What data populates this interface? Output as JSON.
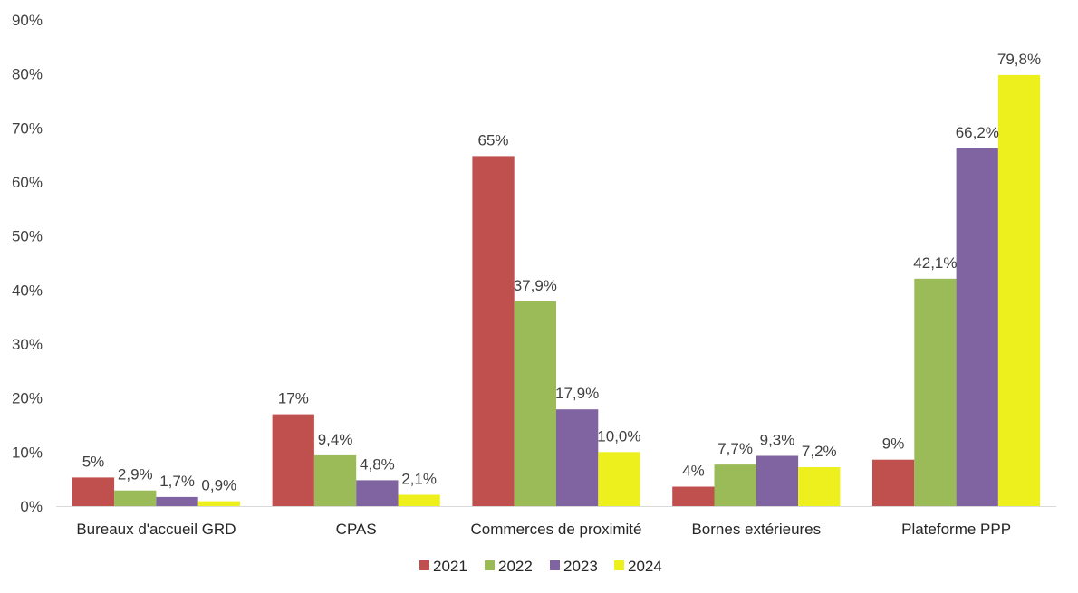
{
  "chart_data": {
    "type": "bar",
    "title": "",
    "xlabel": "",
    "ylabel": "",
    "ylim": [
      0,
      90
    ],
    "y_ticks": [
      0,
      10,
      20,
      30,
      40,
      50,
      60,
      70,
      80,
      90
    ],
    "y_tick_labels": [
      "0%",
      "10%",
      "20%",
      "30%",
      "40%",
      "50%",
      "60%",
      "70%",
      "80%",
      "90%"
    ],
    "grid": false,
    "legend_position": "bottom",
    "categories": [
      "Bureaux d'accueil GRD",
      "CPAS",
      "Commerces de proximité",
      "Bornes extérieures",
      "Plateforme PPP"
    ],
    "series": [
      {
        "name": "2021",
        "color": "#c0504d",
        "values": [
          5.3,
          17,
          64.8,
          3.6,
          8.6
        ],
        "labels": [
          "5%",
          "17%",
          "65%",
          "4%",
          "9%"
        ]
      },
      {
        "name": "2022",
        "color": "#9bbb59",
        "values": [
          2.9,
          9.4,
          37.9,
          7.7,
          42.1
        ],
        "labels": [
          "2,9%",
          "9,4%",
          "37,9%",
          "7,7%",
          "42,1%"
        ]
      },
      {
        "name": "2023",
        "color": "#8064a2",
        "values": [
          1.7,
          4.8,
          17.9,
          9.3,
          66.2
        ],
        "labels": [
          "1,7%",
          "4,8%",
          "17,9%",
          "9,3%",
          "66,2%"
        ]
      },
      {
        "name": "2024",
        "color": "#eef01e",
        "values": [
          0.9,
          2.1,
          10.0,
          7.2,
          79.8
        ],
        "labels": [
          "0,9%",
          "2,1%",
          "10,0%",
          "7,2%",
          "79,8%"
        ]
      }
    ]
  }
}
